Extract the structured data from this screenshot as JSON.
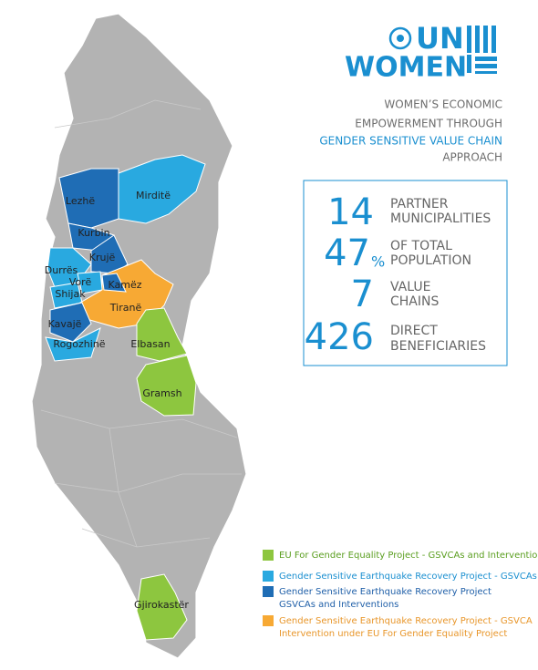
{
  "logo": {
    "top": "UN",
    "bottom": "WOMEN"
  },
  "heading": {
    "lines": [
      "WOMEN’S ECONOMIC",
      "EMPOWERMENT THROUGH",
      "GENDER SENSITIVE VALUE CHAIN",
      "APPROACH"
    ]
  },
  "stats": [
    {
      "number": 14,
      "label": [
        "PARTNER",
        "MUNICIPALITIES"
      ]
    },
    {
      "number": 47,
      "unit": "%",
      "label": [
        "OF TOTAL",
        "POPULATION"
      ]
    },
    {
      "number": 7,
      "label": [
        "VALUE",
        "CHAINS"
      ]
    },
    {
      "number": 426,
      "label": [
        "DIRECT",
        "BENEFICIARIES"
      ]
    }
  ],
  "map": {
    "regions": [
      "Lezhë",
      "Mirditë",
      "Kurbin",
      "Krujë",
      "Durrës",
      "Vorë",
      "Kamëz",
      "Shijak",
      "Tiranë",
      "Kavajë",
      "Rogozhinë",
      "Elbasan",
      "Gramsh",
      "Gjirokastër"
    ]
  },
  "legend": [
    {
      "lines": [
        "EU For Gender Equality Project - GSVCAs and Interventions"
      ]
    },
    {
      "lines": [
        "Gender Sensitive Earthquake Recovery Project - GSVCAs"
      ]
    },
    {
      "lines": [
        "Gender Sensitive Earthquake Recovery Project",
        "GSVCAs and Interventions"
      ]
    },
    {
      "lines": [
        "Gender Sensitive Earthquake Recovery Project - GSVCA",
        "Intervention under EU For Gender Equality Project"
      ]
    }
  ]
}
